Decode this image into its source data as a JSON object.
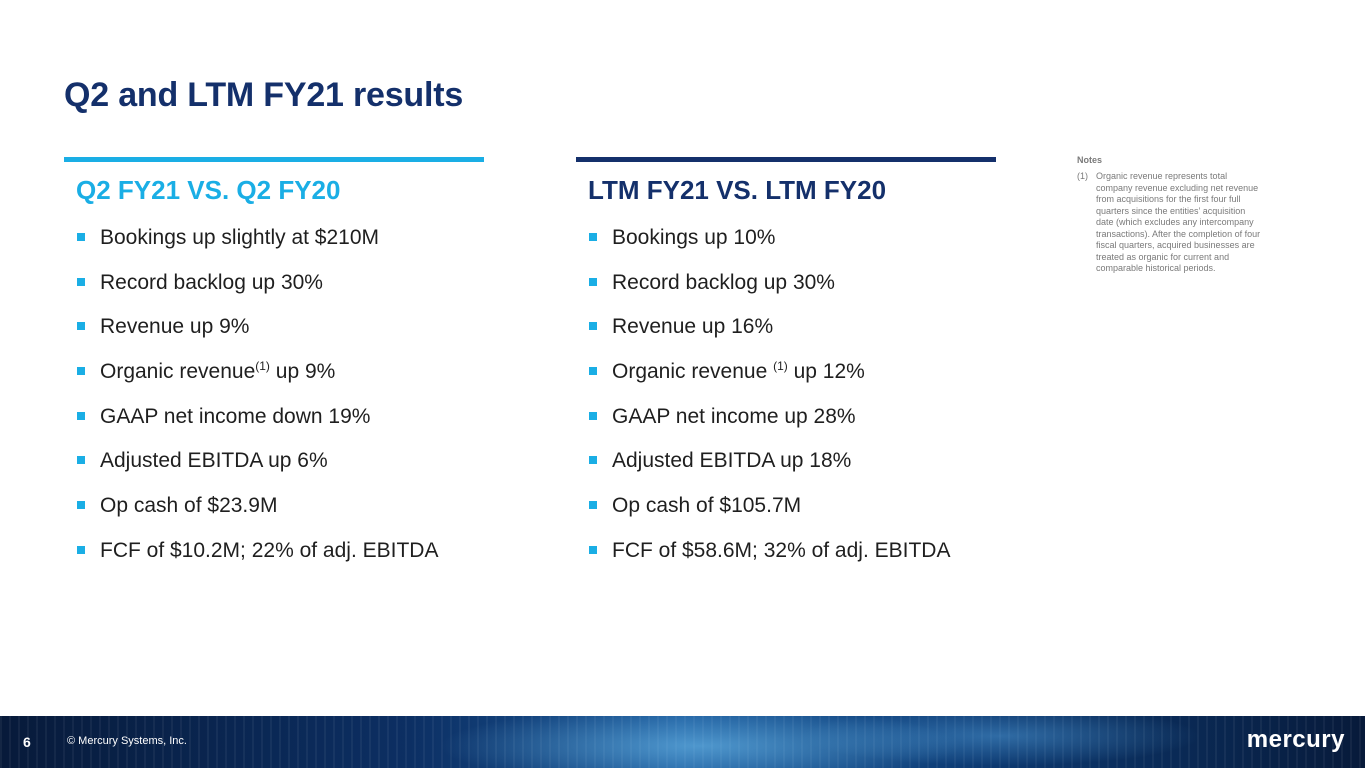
{
  "title": "Q2 and LTM FY21 results",
  "left": {
    "heading": "Q2 FY21 VS. Q2 FY20",
    "items": [
      {
        "text": "Bookings up slightly at $210M"
      },
      {
        "text": "Record backlog up 30%"
      },
      {
        "text": "Revenue up 9%"
      },
      {
        "pre": "Organic revenue",
        "sup": "(1)",
        "post": " up 9%"
      },
      {
        "text": "GAAP net income down 19%"
      },
      {
        "text": "Adjusted EBITDA up 6%"
      },
      {
        "text": "Op cash of $23.9M"
      },
      {
        "text": "FCF of $10.2M; 22% of adj. EBITDA"
      }
    ]
  },
  "right": {
    "heading": "LTM FY21 VS. LTM FY20",
    "items": [
      {
        "text": "Bookings up 10%"
      },
      {
        "text": "Record backlog up 30%"
      },
      {
        "text": "Revenue up 16%"
      },
      {
        "pre": "Organic revenue ",
        "sup": "(1)",
        "post": " up 12%"
      },
      {
        "text": "GAAP net income up 28%"
      },
      {
        "text": "Adjusted EBITDA up 18%"
      },
      {
        "text": "Op cash of $105.7M"
      },
      {
        "text": "FCF of $58.6M; 32% of adj. EBITDA"
      }
    ]
  },
  "notes": {
    "title": "Notes",
    "items": [
      {
        "num": "(1)",
        "text": "Organic revenue represents total company revenue excluding net revenue from acquisitions for the first four full quarters since the entities’ acquisition date (which excludes any intercompany transactions). After the completion of four fiscal quarters, acquired businesses are treated as organic for current and comparable historical periods."
      }
    ]
  },
  "footer": {
    "page_number": "6",
    "copyright": "© Mercury Systems, Inc.",
    "logo_text": "mercury"
  },
  "colors": {
    "title": "#14306b",
    "accent_cyan": "#1aaee5",
    "accent_navy": "#14306b"
  }
}
